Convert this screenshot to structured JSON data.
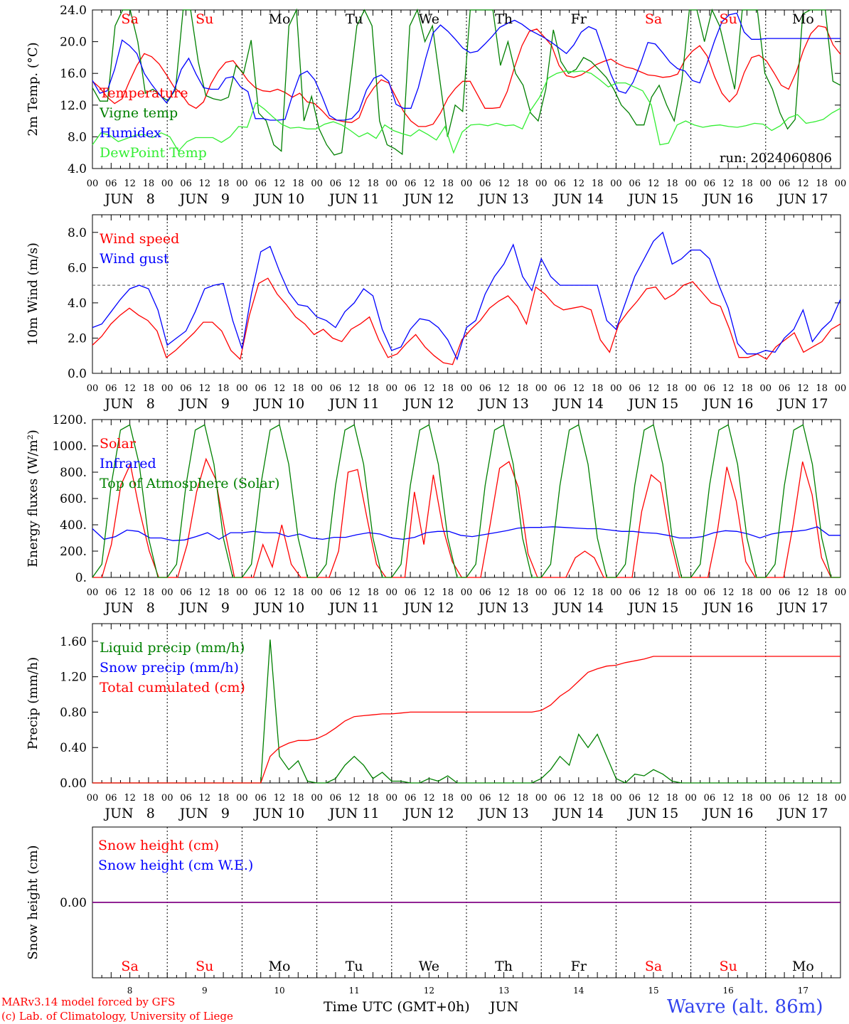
{
  "colors": {
    "red": "#ff0000",
    "green": "#008000",
    "blue": "#0000ff",
    "lightgreen": "#33ee33",
    "purple": "#800080",
    "black": "#000000"
  },
  "day_labels": [
    "JUN   8",
    "JUN   9",
    "JUN 10",
    "JUN 11",
    "JUN 12",
    "JUN 13",
    "JUN 14",
    "JUN 15",
    "JUN 16",
    "JUN 17"
  ],
  "hour_labels": [
    "00",
    "06",
    "12",
    "18"
  ],
  "final_hour_label": "00",
  "weekdays": [
    {
      "label": "Sa",
      "color": "#ff0000"
    },
    {
      "label": "Su",
      "color": "#ff0000"
    },
    {
      "label": "Mo",
      "color": "#000000"
    },
    {
      "label": "Tu",
      "color": "#000000"
    },
    {
      "label": "We",
      "color": "#000000"
    },
    {
      "label": "Th",
      "color": "#000000"
    },
    {
      "label": "Fr",
      "color": "#000000"
    },
    {
      "label": "Sa",
      "color": "#ff0000"
    },
    {
      "label": "Su",
      "color": "#ff0000"
    },
    {
      "label": "Mo",
      "color": "#000000"
    }
  ],
  "day_numbers": [
    "8",
    "9",
    "10",
    "11",
    "12",
    "13",
    "14",
    "15",
    "16",
    "17"
  ],
  "run_label": "run: 2024060806",
  "xlabel": "Time UTC (GMT+0h)",
  "month_label": "JUN",
  "credit_line1": "MARv3.14 model forced by GFS",
  "credit_line2": "(c) Lab. of Climatology, University of Liege",
  "station": "Wavre (alt. 86m)",
  "chart_data": [
    {
      "type": "line",
      "ylabel": "2m Temp. (°C)",
      "ylim": [
        4,
        24
      ],
      "yticks": [
        "4.0",
        "8.0",
        "12.0",
        "16.0",
        "20.0",
        "24.0"
      ],
      "ytick_values": [
        4,
        8,
        12,
        16,
        20,
        24
      ],
      "x_unit": "hours since JUN 8 00 UTC",
      "series": [
        {
          "name": "Temperature",
          "color": "#ff0000",
          "step": 3,
          "values": [
            15,
            14.2,
            13,
            12.2,
            12.8,
            15,
            17,
            18.5,
            18.1,
            17.2,
            15.8,
            14.3,
            13.4,
            12.1,
            11.6,
            12.4,
            14.7,
            16.3,
            17.4,
            17.6,
            16.4,
            15.1,
            14.2,
            13.8,
            13.7,
            14,
            13.6,
            13,
            13.5,
            12.4,
            12.2,
            11.3,
            10.3,
            10.1,
            9.9,
            9.8,
            10.4,
            12.8,
            14.2,
            15.2,
            14.8,
            13,
            11.2,
            10,
            9.3,
            9.3,
            9.6,
            11,
            12.9,
            14.1,
            15,
            15,
            13.3,
            11.6,
            11.6,
            11.7,
            13.7,
            16.8,
            19.5,
            21.3,
            21.6,
            20.6,
            19.5,
            17,
            15.7,
            15.5,
            15.8,
            16.4,
            17.1,
            17.5,
            17.8,
            17.2,
            16.8,
            16.6,
            16.2,
            15.8,
            15.7,
            15.5,
            15.6,
            15.9,
            17.7,
            18.8,
            19.5,
            18.2,
            15.6,
            13.5,
            12.4,
            13.4,
            16.1,
            18,
            18.3,
            17.6,
            16.1,
            14.5,
            14,
            16.1,
            18.9,
            21,
            22,
            21.8,
            19.6,
            18.4
          ]
        },
        {
          "name": "Vigne temp",
          "color": "#008000",
          "step": 3,
          "values": [
            14.2,
            12.5,
            12.5,
            22,
            24,
            24,
            20,
            13.5,
            14,
            13.2,
            12.5,
            14,
            24,
            24,
            17.5,
            13.2,
            12.8,
            12.6,
            13,
            17,
            16,
            20.2,
            11,
            10,
            7,
            6.2,
            22,
            24,
            10,
            13.1,
            9,
            7,
            5.7,
            6,
            14,
            22,
            24,
            22,
            10,
            7,
            6.5,
            5.8,
            22,
            24,
            20,
            22,
            15,
            8,
            12,
            11.2,
            24,
            24,
            24,
            24,
            17,
            20,
            16,
            14.5,
            11,
            10,
            14,
            21.5,
            17.5,
            16,
            16.5,
            18,
            17.5,
            16.5,
            15.5,
            14,
            12,
            11,
            9.5,
            9.5,
            13,
            14.5,
            12,
            10,
            15,
            24,
            24,
            20,
            24,
            22,
            18,
            14,
            24,
            24,
            24,
            16,
            14,
            11,
            9,
            10.2,
            23.5,
            24,
            24,
            24,
            15,
            14.5
          ]
        },
        {
          "name": "Humidex",
          "color": "#0000ff",
          "step": 3,
          "values": [
            15.1,
            13.5,
            13.8,
            16.5,
            20.2,
            19.5,
            18.5,
            16,
            14.6,
            13.4,
            12.3,
            13.8,
            16.5,
            17.9,
            15.9,
            14.2,
            14,
            14,
            15.4,
            15.6,
            14.3,
            13.7,
            10.3,
            10.3,
            10.1,
            10.1,
            10.2,
            13.2,
            15.8,
            16.3,
            15.2,
            13.1,
            10.7,
            10.1,
            10.1,
            10.3,
            11.3,
            13.9,
            15.4,
            15.8,
            15,
            12.1,
            11.6,
            11.6,
            14.2,
            17.9,
            21.1,
            22.1,
            21.3,
            20.3,
            19.2,
            18.6,
            18.8,
            19.7,
            20.7,
            21.8,
            22.3,
            22.7,
            22.2,
            21.5,
            21,
            20.5,
            19.9,
            19.2,
            18.5,
            19.6,
            21.2,
            21.9,
            21.5,
            18.8,
            15.9,
            13.8,
            13.5,
            14.9,
            17.2,
            19.9,
            19.7,
            18.6,
            17.4,
            16.6,
            16.3,
            15.1,
            14.8,
            17.3,
            20.1,
            22.5,
            23.4,
            23.6,
            21.2,
            20.3,
            20.3,
            20.4,
            20.4,
            20.4,
            20.4,
            20.4,
            20.4,
            20.4,
            20.4,
            20.4,
            20.4,
            20.4
          ]
        },
        {
          "name": "DewPoint Temp",
          "color": "#33ee33",
          "step": 3,
          "values": [
            7,
            8.5,
            8.2,
            7.4,
            7.8,
            8.2,
            8.3,
            7.9,
            8.5,
            8,
            6.2,
            7.4,
            7.9,
            7.9,
            7.9,
            7.3,
            8,
            9.3,
            9.2,
            12.3,
            11.5,
            10.5,
            9.6,
            9.1,
            9.2,
            9,
            9,
            9.6,
            9.9,
            9.5,
            8.8,
            8,
            8.5,
            7.8,
            9.5,
            8.8,
            8.4,
            8.1,
            8.9,
            8.3,
            7.6,
            9.3,
            6,
            8.6,
            9.5,
            9.6,
            9.4,
            9.7,
            9.4,
            9.5,
            9,
            11.4,
            13,
            15.4,
            16,
            16.3,
            16.2,
            16.3,
            16,
            15.2,
            14.3,
            14.8,
            14.8,
            14.3,
            13.8,
            12,
            7,
            7.2,
            9.5,
            10,
            9.5,
            9.2,
            9.4,
            9.5,
            9.3,
            9.2,
            9.4,
            9.7,
            9.6,
            8.8,
            9.4,
            10.4,
            10.8,
            9.7,
            9.9,
            10.2,
            11,
            11.6
          ]
        }
      ],
      "legend": "top-left"
    },
    {
      "type": "line",
      "ylabel": "10m Wind (m/s)",
      "ylim": [
        0,
        9
      ],
      "yticks": [
        "0.0",
        "2.0",
        "4.0",
        "6.0",
        "8.0"
      ],
      "ytick_values": [
        0,
        2,
        4,
        6,
        8
      ],
      "reference_line": 5,
      "series": [
        {
          "name": "Wind speed",
          "color": "#ff0000",
          "step": 3,
          "values": [
            1.6,
            2.1,
            2.8,
            3.3,
            3.7,
            3.3,
            3,
            2.4,
            0.9,
            1.3,
            1.8,
            2.3,
            2.9,
            2.9,
            2.4,
            1.3,
            0.8,
            3.3,
            5.1,
            5.4,
            4.5,
            3.9,
            3.2,
            2.8,
            2.2,
            2.5,
            2,
            1.8,
            2.5,
            2.8,
            3.2,
            1.9,
            0.9,
            1.1,
            1.7,
            2.2,
            1.5,
            1,
            0.6,
            0.5,
            1.9,
            2.5,
            3,
            3.7,
            4.1,
            4.4,
            3.8,
            2.8,
            4.9,
            4.5,
            3.9,
            3.6,
            3.7,
            3.8,
            3.6,
            1.9,
            1.2,
            2.8,
            3.5,
            4.1,
            4.8,
            4.9,
            4.2,
            4.5,
            5,
            5.2,
            4.6,
            4,
            3.8,
            2.5,
            0.9,
            0.9,
            1.1,
            0.8,
            1.5,
            1.9,
            2.3,
            1.2,
            1.5,
            1.8,
            2.5,
            2.8
          ]
        },
        {
          "name": "Wind gust",
          "color": "#0000ff",
          "step": 3,
          "values": [
            2.6,
            2.8,
            3.5,
            4.2,
            4.8,
            5,
            4.8,
            3.6,
            1.6,
            2,
            2.4,
            3.5,
            4.8,
            5,
            5.1,
            3,
            1.4,
            4.5,
            6.9,
            7.2,
            5.8,
            4.6,
            3.9,
            3.8,
            3.2,
            3,
            2.6,
            3.5,
            4,
            4.8,
            4.4,
            2.5,
            1.3,
            1.5,
            2.5,
            3.1,
            3,
            2.6,
            1.9,
            0.8,
            2.6,
            3,
            4.5,
            5.5,
            6.2,
            7.3,
            5.5,
            4.7,
            6.5,
            5.5,
            5,
            5,
            5,
            5,
            5,
            3,
            2.5,
            4,
            5.5,
            6.5,
            7.5,
            8,
            6.2,
            6.5,
            7,
            7,
            6.5,
            5,
            3.7,
            1.7,
            1.1,
            1.1,
            1.3,
            1.2,
            2,
            2.5,
            3.6,
            1.8,
            2.5,
            3,
            4.2
          ]
        }
      ],
      "legend": "top-left"
    },
    {
      "type": "line",
      "ylabel": "Energy fluxes (W/m²)",
      "ylim": [
        0,
        1200
      ],
      "yticks": [
        "0.",
        "200.",
        "400.",
        "600.",
        "800.",
        "1000.",
        "1200."
      ],
      "ytick_values": [
        0,
        200,
        400,
        600,
        800,
        1000,
        1200
      ],
      "series": [
        {
          "name": "Solar",
          "color": "#ff0000",
          "step": 3,
          "values": [
            0,
            0,
            250,
            700,
            860,
            500,
            200,
            0,
            0,
            0,
            250,
            650,
            900,
            750,
            350,
            0,
            0,
            0,
            250,
            80,
            400,
            100,
            0,
            0,
            0,
            0,
            200,
            800,
            820,
            450,
            100,
            0,
            0,
            0,
            650,
            250,
            780,
            380,
            120,
            0,
            0,
            0,
            400,
            830,
            880,
            680,
            180,
            0,
            0,
            0,
            0,
            150,
            200,
            150,
            0,
            0,
            0,
            0,
            500,
            780,
            720,
            300,
            0,
            0,
            0,
            0,
            350,
            840,
            580,
            120,
            0,
            0,
            0,
            0,
            400,
            880,
            630,
            150,
            0,
            0
          ]
        },
        {
          "name": "Infrared",
          "color": "#0000ff",
          "step": 3,
          "values": [
            370,
            290,
            310,
            360,
            350,
            300,
            300,
            280,
            285,
            310,
            340,
            290,
            340,
            340,
            350,
            340,
            340,
            310,
            330,
            300,
            290,
            305,
            305,
            325,
            340,
            330,
            300,
            290,
            305,
            340,
            350,
            350,
            320,
            310,
            325,
            340,
            355,
            375,
            380,
            380,
            385,
            380,
            375,
            370,
            370,
            360,
            350,
            350,
            340,
            335,
            320,
            300,
            300,
            310,
            340,
            355,
            350,
            330,
            300,
            330,
            345,
            350,
            360,
            385,
            320,
            320
          ]
        },
        {
          "name": "Top of Atmosphere (Solar)",
          "color": "#008000",
          "step": 3,
          "values": [
            0,
            100,
            700,
            1120,
            1160,
            860,
            300,
            0
          ]
        }
      ],
      "legend": "top-left"
    },
    {
      "type": "line",
      "ylabel": "Precip (mm/h)",
      "ylim": [
        0,
        1.8
      ],
      "yticks": [
        "0.00",
        "0.40",
        "0.80",
        "1.20",
        "1.60"
      ],
      "ytick_values": [
        0,
        0.4,
        0.8,
        1.2,
        1.6
      ],
      "series": [
        {
          "name": "Liquid precip (mm/h)",
          "color": "#008000",
          "step": 3,
          "values": [
            0,
            0,
            0,
            0,
            0,
            0,
            0,
            0,
            0,
            0,
            0,
            0,
            0,
            0,
            0,
            0,
            0,
            0,
            0,
            1.62,
            0.3,
            0.15,
            0.25,
            0.02,
            0,
            0,
            0.05,
            0.2,
            0.3,
            0.2,
            0.05,
            0.12,
            0.02,
            0.02,
            0,
            0,
            0.05,
            0.02,
            0.08,
            0,
            0,
            0,
            0,
            0,
            0,
            0,
            0,
            0,
            0.05,
            0.15,
            0.3,
            0.2,
            0.55,
            0.4,
            0.55,
            0.3,
            0.05,
            0,
            0.1,
            0.08,
            0.15,
            0.1,
            0.02,
            0,
            0,
            0,
            0,
            0,
            0,
            0,
            0,
            0,
            0,
            0,
            0,
            0,
            0,
            0,
            0,
            0,
            0
          ]
        },
        {
          "name": "Snow precip (mm/h)",
          "color": "#0000ff",
          "step": 3,
          "values": []
        },
        {
          "name": "Total cumulated (cm)",
          "color": "#ff0000",
          "step": 3,
          "values": [
            0,
            0,
            0,
            0,
            0,
            0,
            0,
            0,
            0,
            0,
            0,
            0,
            0,
            0,
            0,
            0,
            0,
            0,
            0,
            0.3,
            0.4,
            0.45,
            0.48,
            0.48,
            0.5,
            0.55,
            0.62,
            0.7,
            0.75,
            0.76,
            0.77,
            0.78,
            0.78,
            0.79,
            0.8,
            0.8,
            0.8,
            0.8,
            0.8,
            0.8,
            0.8,
            0.8,
            0.8,
            0.8,
            0.8,
            0.8,
            0.8,
            0.8,
            0.82,
            0.88,
            0.98,
            1.05,
            1.15,
            1.25,
            1.29,
            1.32,
            1.33,
            1.36,
            1.38,
            1.4,
            1.43,
            1.43,
            1.43,
            1.43,
            1.43,
            1.43,
            1.43,
            1.43,
            1.43,
            1.43,
            1.43,
            1.43,
            1.43,
            1.43,
            1.43,
            1.43,
            1.43,
            1.43,
            1.43,
            1.43,
            1.43
          ]
        }
      ],
      "legend": "top-left"
    },
    {
      "type": "line",
      "ylabel": "Snow height (cm)",
      "ylim": [
        -1,
        1
      ],
      "yticks": [
        "0.00"
      ],
      "ytick_values": [
        0
      ],
      "series": [
        {
          "name": "Snow height (cm)",
          "color": "#ff0000",
          "values": [
            0,
            0
          ]
        },
        {
          "name": "Snow height (cm W.E.)",
          "color": "#0000ff",
          "values": [
            0,
            0
          ]
        }
      ],
      "legend": "top-left"
    }
  ]
}
